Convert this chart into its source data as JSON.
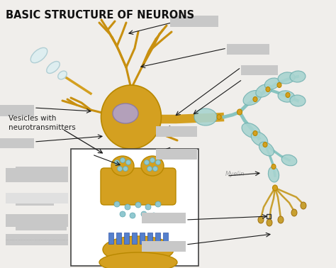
{
  "title": "BASIC STRUCTURE OF NEURONS",
  "title_fontsize": 10.5,
  "title_fontweight": "bold",
  "bg_color": "#f0eeeb",
  "arrow_color": "#1a1a1a",
  "soma_color": "#d4a020",
  "soma_edge": "#b88800",
  "dendrite_color": "#c89010",
  "nucleus_color": "#b0a0cc",
  "nucleus_edge": "#8878aa",
  "axon_color": "#d4a020",
  "myelin_color": "#a8d4d0",
  "myelin_edge": "#70b0b0",
  "gold_node": "#d4a020",
  "terminal_line_color": "#88c4c0",
  "synapse_gold": "#d4a020",
  "receptor_color": "#5580cc",
  "vesicle_color": "#90c8d0",
  "vesicle_edge": "#60a8b0",
  "label_gray": "#c8c8c8",
  "inset_bg": "#ffffff",
  "myelin_text_color": "#a0a0a0",
  "vesicles_text": "Vesicles with\nneurotransmitters",
  "myelin_label_text": "Myelin"
}
